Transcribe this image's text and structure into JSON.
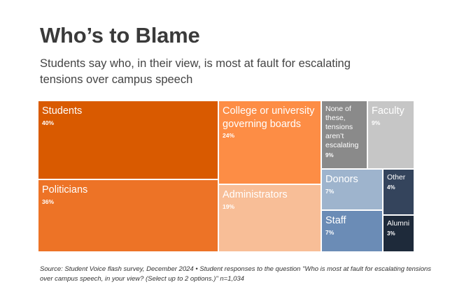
{
  "header": {
    "title": "Who’s to Blame",
    "subtitle": "Students say who, in their view, is most at fault for escalating tensions over campus speech"
  },
  "chart_data": {
    "type": "treemap",
    "title": "Who’s to Blame",
    "subtitle": "Students say who, in their view, is most at fault for escalating tensions over campus speech",
    "items": [
      {
        "id": "students",
        "label": "Students",
        "value": 40,
        "display": "40%",
        "color": "#d95a00"
      },
      {
        "id": "politicians",
        "label": "Politicians",
        "value": 36,
        "display": "36%",
        "color": "#ed7326"
      },
      {
        "id": "boards",
        "label": "College or university governing boards",
        "value": 24,
        "display": "24%",
        "color": "#fd8d45"
      },
      {
        "id": "administrators",
        "label": "Administrators",
        "value": 19,
        "display": "19%",
        "color": "#f8be97"
      },
      {
        "id": "none",
        "label": "None of these, tensions aren’t escalating",
        "value": 9,
        "display": "9%",
        "color": "#8a8a8a"
      },
      {
        "id": "faculty",
        "label": "Faculty",
        "value": 9,
        "display": "9%",
        "color": "#c6c6c6"
      },
      {
        "id": "donors",
        "label": "Donors",
        "value": 7,
        "display": "7%",
        "color": "#9eb4cd"
      },
      {
        "id": "staff",
        "label": "Staff",
        "value": 7,
        "display": "7%",
        "color": "#6b8cb6"
      },
      {
        "id": "other",
        "label": "Other",
        "value": 4,
        "display": "4%",
        "color": "#34445c"
      },
      {
        "id": "alumni",
        "label": "Alumni",
        "value": 3,
        "display": "3%",
        "color": "#1e2a3a"
      }
    ]
  },
  "footer": {
    "source": "Source: Student Voice flash survey, December 2024 • Student responses to the question \"Who is most at fault for escalating tensions over campus speech, in your view? (Select up to 2 options.)\" n=1,034"
  }
}
